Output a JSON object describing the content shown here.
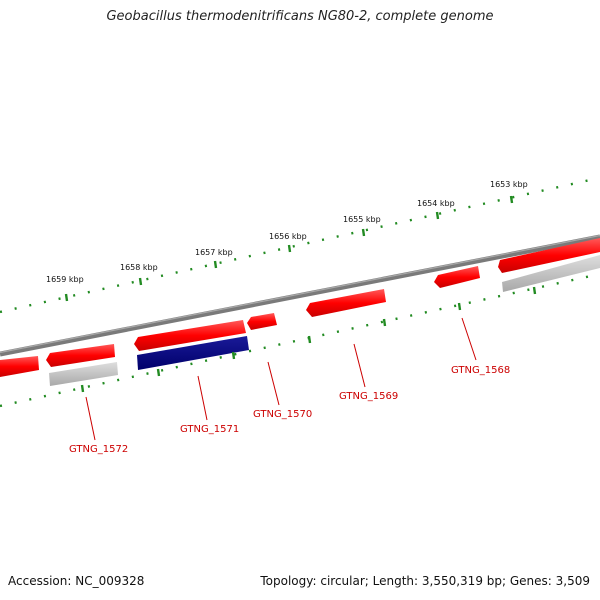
{
  "title": "Geobacillus thermodenitrificans NG80-2, complete genome",
  "footer": {
    "accession": "Accession: NC_009328",
    "stats": "Topology: circular; Length: 3,550,319 bp; Genes: 3,509"
  },
  "scale_labels": [
    "1659 kbp",
    "1658 kbp",
    "1657 kbp",
    "1656 kbp",
    "1655 kbp",
    "1654 kbp",
    "1653 kbp"
  ],
  "gene_labels": [
    "GTNG_1572",
    "GTNG_1571",
    "GTNG_1570",
    "GTNG_1569",
    "GTNG_1568"
  ],
  "colors": {
    "gene_red": "#ff0000",
    "gene_navy": "#000080",
    "gene_grey": "#b8b8b8",
    "backbone": "#808080",
    "ticks": "#228b22",
    "label_red": "#cc0000"
  }
}
